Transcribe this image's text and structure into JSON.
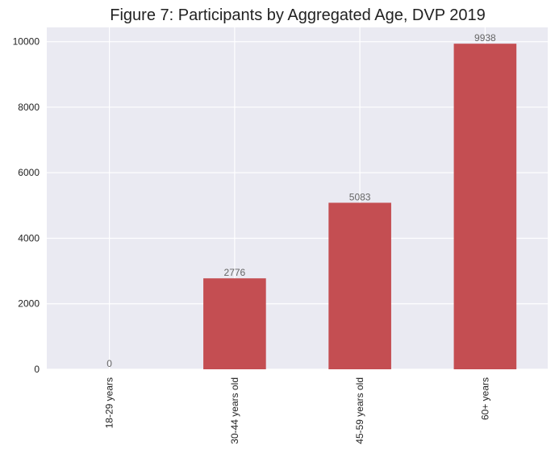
{
  "chart_data": {
    "type": "bar",
    "title": "Figure 7: Participants by Aggregated Age, DVP 2019",
    "categories": [
      "18-29 years",
      "30-44 years old",
      "45-59 years old",
      "60+ years"
    ],
    "values": [
      0,
      2776,
      5083,
      9938
    ],
    "data_labels": [
      "0",
      "2776",
      "5083",
      "9938"
    ],
    "y_ticks": [
      0,
      2000,
      4000,
      6000,
      8000,
      10000
    ],
    "y_tick_labels": [
      "0",
      "2000",
      "4000",
      "6000",
      "8000",
      "10000"
    ],
    "ylim": [
      0,
      10435
    ],
    "xlabel": "",
    "ylabel": "",
    "grid": true,
    "x_tick_rotation": "vertical",
    "colors": {
      "bar": "#c44e52",
      "plot_background": "#eaeaf2",
      "grid": "#ffffff"
    }
  }
}
